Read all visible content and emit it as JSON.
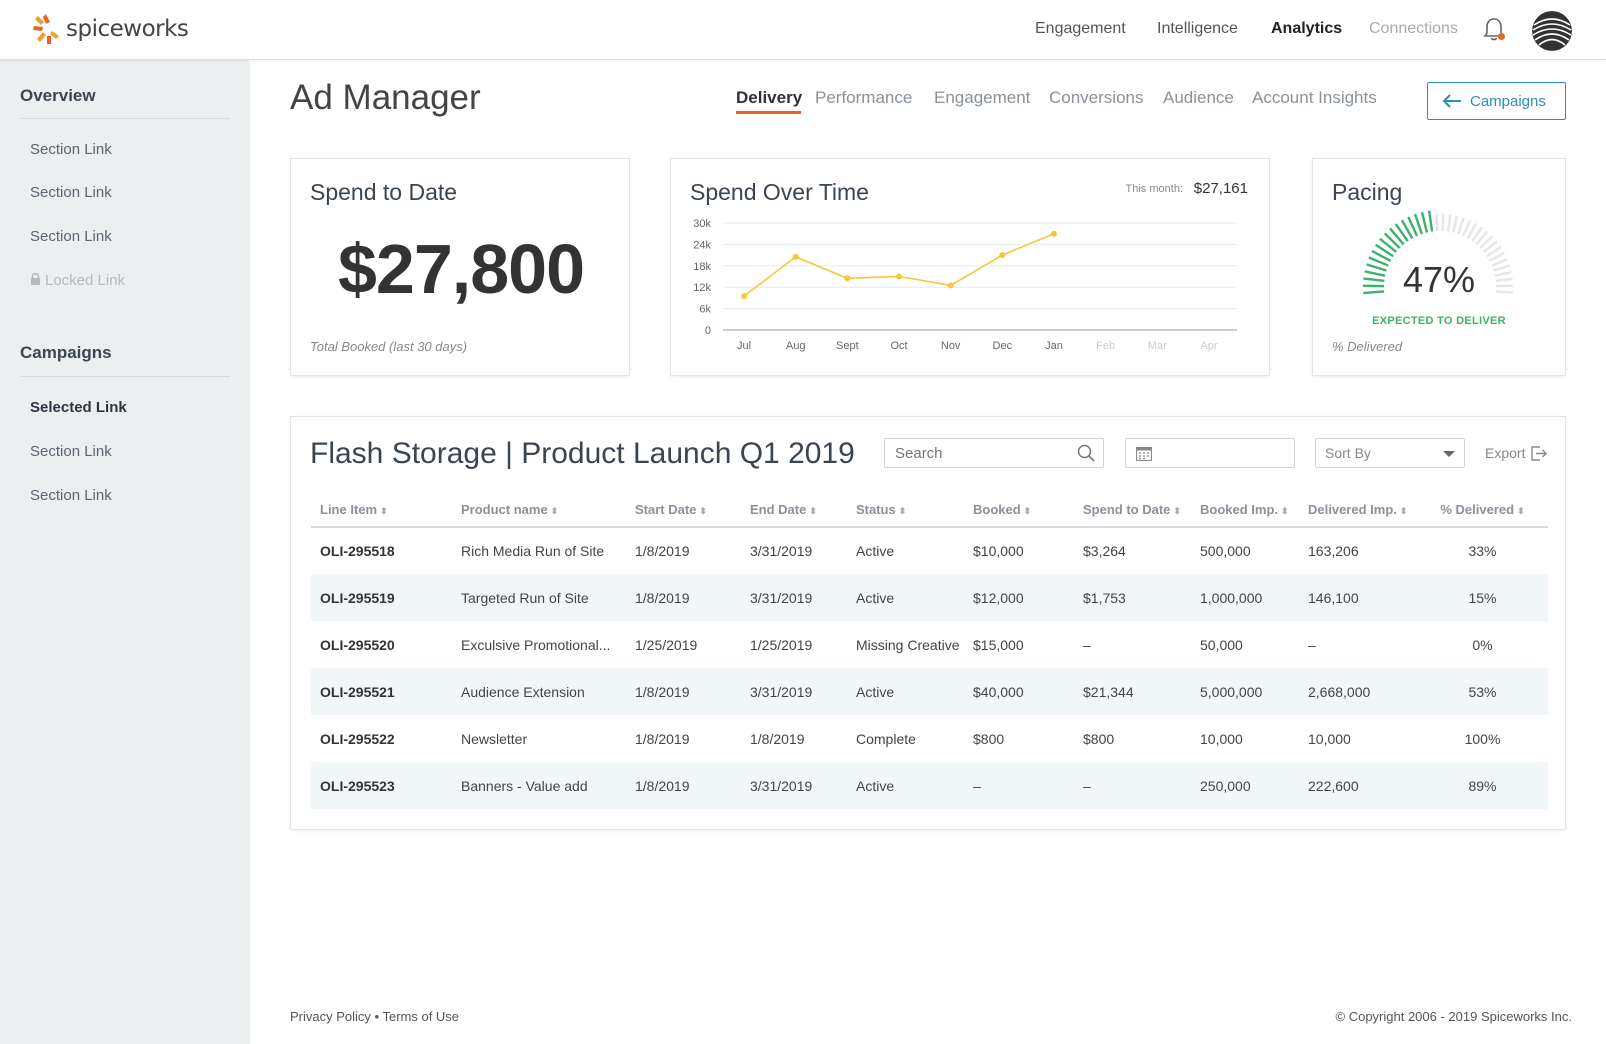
{
  "brand": {
    "name": "spiceworks"
  },
  "topnav": {
    "items": [
      {
        "label": "Engagement",
        "state": "normal"
      },
      {
        "label": "Intelligence",
        "state": "normal"
      },
      {
        "label": "Analytics",
        "state": "active"
      },
      {
        "label": "Connections",
        "state": "disabled"
      }
    ]
  },
  "sidebar": {
    "overview_heading": "Overview",
    "overview_links": [
      "Section Link",
      "Section Link",
      "Section Link",
      "Locked Link"
    ],
    "campaigns_heading": "Campaigns",
    "campaign_links": [
      "Selected Link",
      "Section Link",
      "Section Link"
    ]
  },
  "page": {
    "title": "Ad Manager",
    "tabs": [
      "Delivery",
      "Performance",
      "Engagement",
      "Conversions",
      "Audience",
      "Account Insights"
    ],
    "active_tab": "Delivery",
    "back_button": "Campaigns"
  },
  "spend_card": {
    "title": "Spend to Date",
    "value": "$27,800",
    "footnote": "Total Booked (last 30 days)"
  },
  "spend_chart_card": {
    "title": "Spend Over Time",
    "this_month_label": "This month:",
    "this_month_value": "$27,161"
  },
  "chart_data": {
    "type": "line",
    "title": "Spend Over Time",
    "categories": [
      "Jul",
      "Aug",
      "Sept",
      "Oct",
      "Nov",
      "Dec",
      "Jan",
      "Feb",
      "Mar",
      "Apr"
    ],
    "series": [
      {
        "values": [
          9500,
          20500,
          14500,
          15000,
          12500,
          21000,
          27000,
          null,
          null,
          null
        ]
      }
    ],
    "y_ticks": [
      "30k",
      "24k",
      "18k",
      "12k",
      "6k",
      "0"
    ],
    "ylim": [
      0,
      30000
    ],
    "grid": true,
    "future_categories": [
      "Feb",
      "Mar",
      "Apr"
    ],
    "line_color": "#f7c736"
  },
  "pacing_card": {
    "title": "Pacing",
    "percent_text": "47%",
    "percent_value": 0.47,
    "subtitle": "EXPECTED TO DELIVER",
    "footnote": "% Delivered",
    "fill_color": "#3bb36a"
  },
  "table_card": {
    "title": "Flash Storage | Product Launch Q1 2019",
    "search_placeholder": "Search",
    "sort_label": "Sort By",
    "export_label": "Export",
    "columns": [
      "Line Item",
      "Product name",
      "Start Date",
      "End Date",
      "Status",
      "Booked",
      "Spend to Date",
      "Booked Imp.",
      "Delivered Imp.",
      "% Delivered"
    ],
    "rows": [
      [
        "OLI-295518",
        "Rich Media Run of Site",
        "1/8/2019",
        "3/31/2019",
        "Active",
        "$10,000",
        "$3,264",
        "500,000",
        "163,206",
        "33%"
      ],
      [
        "OLI-295519",
        "Targeted Run of Site",
        "1/8/2019",
        "3/31/2019",
        "Active",
        "$12,000",
        "$1,753",
        "1,000,000",
        "146,100",
        "15%"
      ],
      [
        "OLI-295520",
        "Exculsive Promotional...",
        "1/25/2019",
        "1/25/2019",
        "Missing Creative",
        "$15,000",
        "–",
        "50,000",
        "–",
        "0%"
      ],
      [
        "OLI-295521",
        "Audience Extension",
        "1/8/2019",
        "3/31/2019",
        "Active",
        "$40,000",
        "$21,344",
        "5,000,000",
        "2,668,000",
        "53%"
      ],
      [
        "OLI-295522",
        "Newsletter",
        "1/8/2019",
        "1/8/2019",
        "Complete",
        "$800",
        "$800",
        "10,000",
        "10,000",
        "100%"
      ],
      [
        "OLI-295523",
        "Banners - Value add",
        "1/8/2019",
        "3/31/2019",
        "Active",
        "–",
        "–",
        "250,000",
        "222,600",
        "89%"
      ]
    ]
  },
  "footer": {
    "privacy": "Privacy Policy",
    "separator": " • ",
    "terms": "Terms of Use",
    "copyright": "© Copyright 2006 - 2019 Spiceworks Inc."
  },
  "colors": {
    "accent_orange": "#e8632b",
    "link_blue": "#2b8fb7",
    "chart_line": "#f7c736",
    "pacing_green": "#3bb36a"
  }
}
